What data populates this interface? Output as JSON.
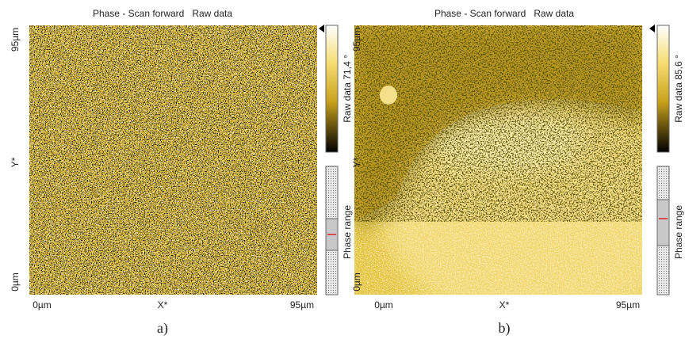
{
  "panels": [
    {
      "title": "Phase - Scan forward   Raw data",
      "y_axis": {
        "top": "95µm",
        "middle": "Y*",
        "bottom": "0µm"
      },
      "x_axis": {
        "left": "0µm",
        "middle": "X*",
        "right": "95µm"
      },
      "colorbar_label": "Raw data 71,4 °",
      "range_label": "Phase range",
      "caption": "a)"
    },
    {
      "title": "Phase - Scan forward   Raw data",
      "y_axis": {
        "top": "95µm",
        "middle": "Y*",
        "bottom": "0µm"
      },
      "x_axis": {
        "left": "0µm",
        "middle": "X*",
        "right": "95µm"
      },
      "colorbar_label": "Raw data 85,6 °",
      "range_label": "Phase range",
      "caption": "b)"
    }
  ]
}
